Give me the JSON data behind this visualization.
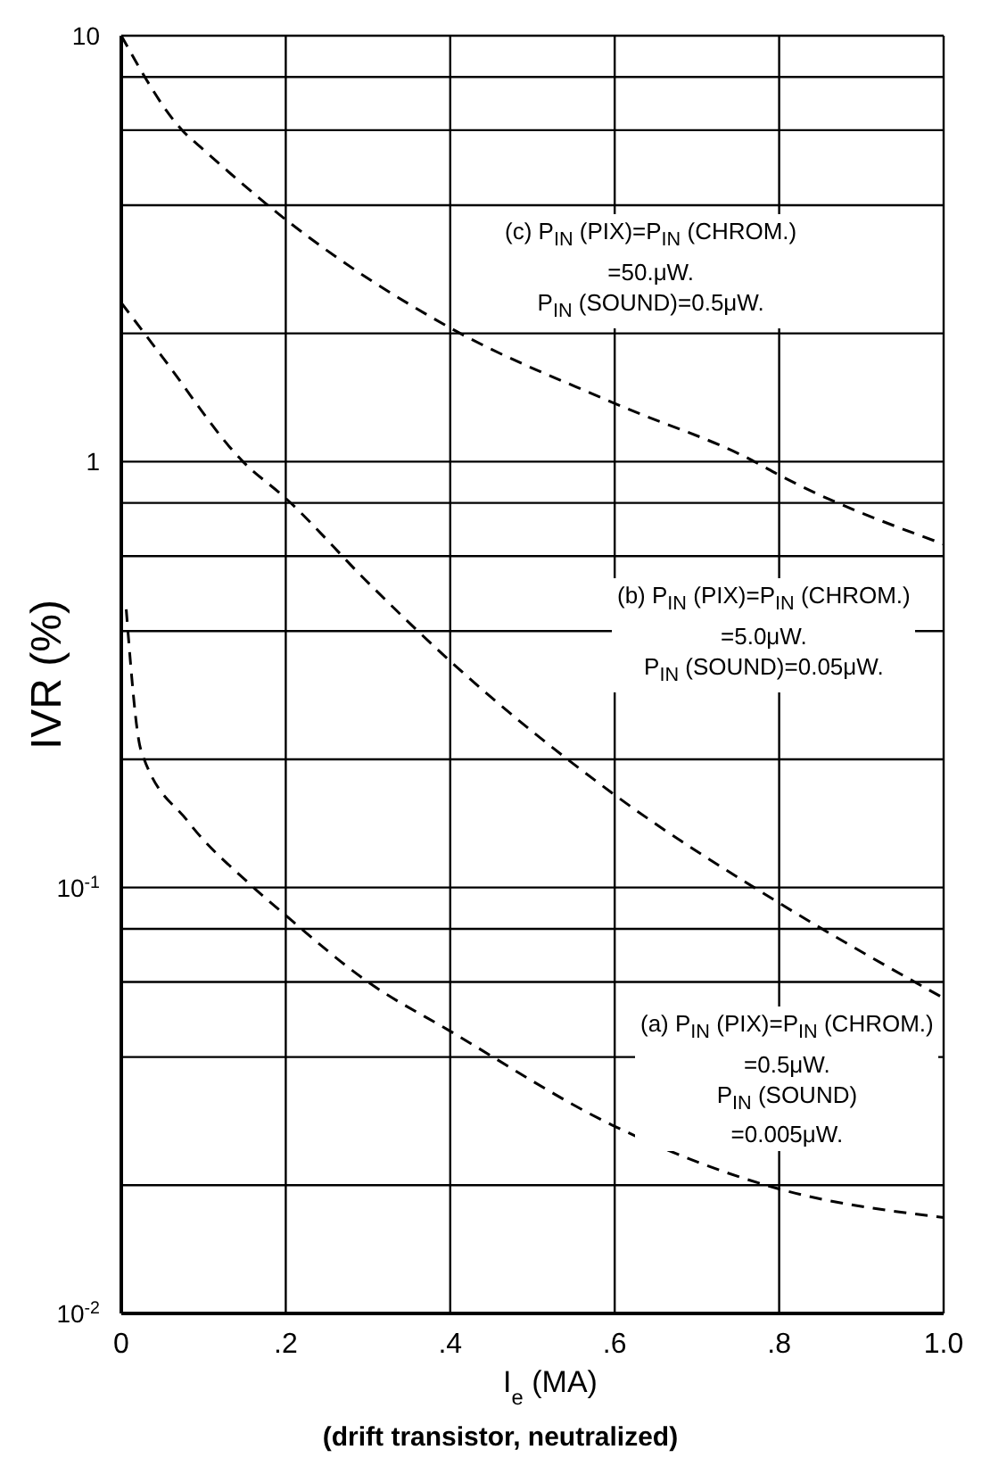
{
  "chart_data": {
    "type": "line",
    "xlabel": "I$_{e}$ (MA)",
    "ylabel": "IVR (%)",
    "xlim": [
      0,
      1.0
    ],
    "xticks": [
      0,
      {
        "value": 0.2,
        "label": ".2"
      },
      {
        "value": 0.4,
        "label": ".4"
      },
      {
        "value": 0.6,
        "label": ".6"
      },
      {
        "value": 0.8,
        "label": ".8"
      },
      {
        "value": 1.0,
        "label": "1.0"
      }
    ],
    "ylim": [
      0.01,
      10
    ],
    "yticks": [
      {
        "value": 0.01,
        "label": "10$^{-2}$"
      },
      {
        "value": 0.02,
        "label": null
      },
      {
        "value": 0.04,
        "label": null
      },
      {
        "value": 0.06,
        "label": null
      },
      {
        "value": 0.08,
        "label": null
      },
      {
        "value": 0.1,
        "label": "10$^{-1}$"
      },
      {
        "value": 0.2,
        "label": null
      },
      {
        "value": 0.4,
        "label": null
      },
      {
        "value": 0.6,
        "label": null
      },
      {
        "value": 0.8,
        "label": null
      },
      1,
      {
        "value": 2,
        "label": null
      },
      {
        "value": 4,
        "label": null
      },
      {
        "value": 6,
        "label": null
      },
      {
        "value": 8,
        "label": null
      },
      10
    ],
    "log": "y",
    "grid": true,
    "marker": "none",
    "line_style": "dashed",
    "series": [
      {
        "color": "#000000",
        "x": [
          0,
          0.074,
          0.1,
          0.2,
          0.4,
          0.6,
          0.77,
          0.8,
          1.0
        ],
        "values": [
          10,
          6,
          5.4,
          3.7,
          2.06,
          1.37,
          1,
          0.93,
          0.64
        ]
      },
      {
        "color": "#000000",
        "x": [
          0,
          0.05,
          0.148,
          0.2,
          0.3,
          0.4,
          0.6,
          0.8,
          1.0
        ],
        "values": [
          2.36,
          1.76,
          1,
          0.82,
          0.52,
          0.34,
          0.165,
          0.092,
          0.055
        ]
      },
      {
        "color": "#000000",
        "x": [
          0.006,
          0.024,
          0.081,
          0.156,
          0.2,
          0.3,
          0.4,
          0.6,
          0.8,
          1.0
        ],
        "values": [
          0.45,
          0.21,
          0.143,
          0.102,
          0.086,
          0.06,
          0.046,
          0.0275,
          0.0196,
          0.0168
        ]
      }
    ],
    "annotations": [
      "(c) P$_{IN}$ (PIX)=P$_{IN}$ (CHROM.)\n=50.μW.\nP$_{IN}$ (SOUND)=0.5μW.",
      "(b) P$_{IN}$ (PIX)=P$_{IN}$ (CHROM.)\n=5.0μW.\nP$_{IN}$ (SOUND)=0.05μW.",
      "(a) P$_{IN}$ (PIX)=P$_{IN}$ (CHROM.)\n=0.5μW.\nP$_{IN}$ (SOUND)\n=0.005μW.",
      "(drift transistor, neutralized)"
    ]
  }
}
